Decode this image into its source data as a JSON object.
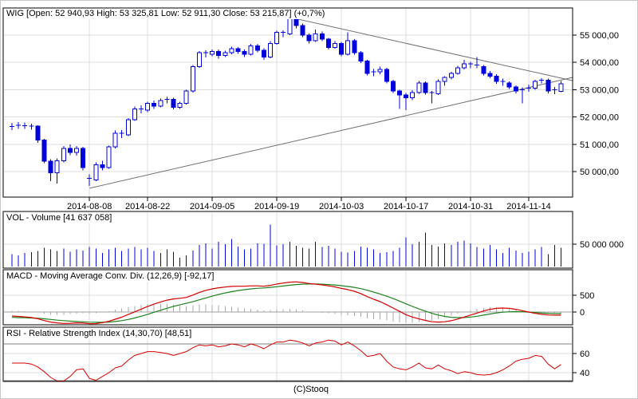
{
  "panels": {
    "price": {
      "header": "WIG [Open: 52 940,93  High: 53 325,81  Low: 52 911,30  Close: 53 215,87] (+0,7%)"
    },
    "volume": {
      "header": "VOL - Volume [41 637 058]"
    },
    "macd": {
      "header": "MACD - Moving Average Conv. Div. (12,26,9) [-92,17]"
    },
    "rsi": {
      "header": "RSI - Relative Strength Index (14,30,70) [48,51]"
    }
  },
  "footer": {
    "copyright": "(C)Stooq"
  },
  "colors": {
    "candle": "#0000dc",
    "volume": "#0000dc",
    "macd_line": "#d40000",
    "signal_line": "#1e821e",
    "histogram": "#a8a8a8",
    "rsi_line": "#d40000",
    "trendline": "#707070",
    "grid": "#dcdcdc",
    "zero_line": "#a0a0a0",
    "level_line": "#808080",
    "border": "#000000"
  },
  "chart_data": [
    {
      "type": "candlestick",
      "name": "WIG daily",
      "title": "WIG [Open: 52 940,93  High: 53 325,81  Low: 52 911,30  Close: 53 215,87] (+0,7%)",
      "grid": true,
      "ylim": [
        49060,
        55990
      ],
      "x_ticks": [
        {
          "index": 12,
          "label": "2014-08-08"
        },
        {
          "index": 21,
          "label": "2014-08-22"
        },
        {
          "index": 31,
          "label": "2014-09-05"
        },
        {
          "index": 41,
          "label": "2014-09-19"
        },
        {
          "index": 51,
          "label": "2014-10-03"
        },
        {
          "index": 61,
          "label": "2014-10-17"
        },
        {
          "index": 71,
          "label": "2014-10-31"
        },
        {
          "index": 80,
          "label": "2014-11-14"
        }
      ],
      "y_axis": [
        {
          "value": 55000,
          "label": "55 000,00"
        },
        {
          "value": 54000,
          "label": "54 000,00"
        },
        {
          "value": 53000,
          "label": "53 000,00"
        },
        {
          "value": 52000,
          "label": "52 000,00"
        },
        {
          "value": 51000,
          "label": "51 000,00"
        },
        {
          "value": 50000,
          "label": "50 000,00"
        }
      ],
      "trendlines": [
        {
          "name": "rising-support",
          "from": {
            "index": 12,
            "price": 49390
          },
          "to": {
            "index": 86.8,
            "price": 53450
          }
        },
        {
          "name": "falling-resistance",
          "from": {
            "index": 41,
            "price": 55760
          },
          "to": {
            "index": 86.8,
            "price": 53330
          }
        }
      ],
      "ohlc": [
        [
          51600,
          51780,
          51520,
          51650
        ],
        [
          51650,
          51820,
          51560,
          51700
        ],
        [
          51680,
          51800,
          51570,
          51680
        ],
        [
          51660,
          51760,
          51540,
          51660
        ],
        [
          51660,
          51700,
          51050,
          51150
        ],
        [
          51150,
          51200,
          50300,
          50380
        ],
        [
          50380,
          50450,
          49650,
          49950
        ],
        [
          49950,
          50480,
          49560,
          50400
        ],
        [
          50400,
          50930,
          50340,
          50850
        ],
        [
          50850,
          51000,
          50600,
          50700
        ],
        [
          50700,
          50940,
          50580,
          50850
        ],
        [
          50850,
          50900,
          50050,
          50150
        ],
        [
          49750,
          49900,
          49470,
          49700
        ],
        [
          49700,
          50330,
          49650,
          50250
        ],
        [
          50250,
          50400,
          50050,
          50150
        ],
        [
          50150,
          50950,
          50100,
          50900
        ],
        [
          50900,
          51500,
          50850,
          51400
        ],
        [
          51400,
          51520,
          51230,
          51350
        ],
        [
          51350,
          51960,
          51300,
          51900
        ],
        [
          51900,
          52380,
          51850,
          52300
        ],
        [
          52300,
          52420,
          52130,
          52250
        ],
        [
          52250,
          52560,
          52180,
          52500
        ],
        [
          52500,
          52600,
          52300,
          52400
        ],
        [
          52400,
          52680,
          52350,
          52600
        ],
        [
          52600,
          52740,
          52500,
          52650
        ],
        [
          52650,
          52700,
          52280,
          52350
        ],
        [
          52350,
          52560,
          52290,
          52500
        ],
        [
          52500,
          53000,
          52450,
          52950
        ],
        [
          52950,
          53900,
          52900,
          53850
        ],
        [
          53850,
          54420,
          53800,
          54350
        ],
        [
          54350,
          54440,
          54180,
          54300
        ],
        [
          54300,
          54480,
          54220,
          54400
        ],
        [
          54400,
          54470,
          54140,
          54250
        ],
        [
          54250,
          54430,
          54190,
          54350
        ],
        [
          54350,
          54580,
          54300,
          54500
        ],
        [
          54500,
          54560,
          54310,
          54400
        ],
        [
          54400,
          54480,
          54200,
          54300
        ],
        [
          54300,
          54680,
          54260,
          54600
        ],
        [
          54600,
          54680,
          54370,
          54450
        ],
        [
          54450,
          54520,
          54100,
          54200
        ],
        [
          54200,
          54780,
          54150,
          54700
        ],
        [
          54700,
          55160,
          54650,
          55100
        ],
        [
          55100,
          55180,
          54920,
          55050
        ],
        [
          55050,
          55750,
          55000,
          55650
        ],
        [
          55650,
          55700,
          55250,
          55350
        ],
        [
          55350,
          55420,
          54920,
          55000
        ],
        [
          55000,
          55060,
          54700,
          54800
        ],
        [
          54800,
          55200,
          54750,
          55050
        ],
        [
          55050,
          55130,
          54780,
          54850
        ],
        [
          54850,
          54900,
          54480,
          54550
        ],
        [
          54550,
          54780,
          54500,
          54700
        ],
        [
          54700,
          54750,
          54220,
          54300
        ],
        [
          54300,
          55100,
          54260,
          54800
        ],
        [
          54800,
          54860,
          54280,
          54350
        ],
        [
          54350,
          54420,
          53980,
          54050
        ],
        [
          54050,
          54100,
          53520,
          53600
        ],
        [
          53600,
          53760,
          53500,
          53650
        ],
        [
          53650,
          53840,
          53560,
          53750
        ],
        [
          53750,
          53800,
          53230,
          53300
        ],
        [
          53300,
          53360,
          52880,
          52950
        ],
        [
          52950,
          53000,
          52300,
          52800
        ],
        [
          52800,
          52880,
          52250,
          52700
        ],
        [
          52700,
          52980,
          52620,
          52900
        ],
        [
          52900,
          53320,
          52850,
          53250
        ],
        [
          53250,
          53300,
          52820,
          52900
        ],
        [
          52900,
          52960,
          52500,
          52850
        ],
        [
          52850,
          53370,
          52800,
          53300
        ],
        [
          53300,
          53500,
          53150,
          53450
        ],
        [
          53450,
          53660,
          53380,
          53600
        ],
        [
          53600,
          53870,
          53550,
          53800
        ],
        [
          53800,
          54100,
          53750,
          53950
        ],
        [
          53950,
          54020,
          53780,
          53900
        ],
        [
          53900,
          54200,
          53790,
          53850
        ],
        [
          53850,
          53900,
          53520,
          53600
        ],
        [
          53600,
          53680,
          53420,
          53500
        ],
        [
          53500,
          53560,
          53220,
          53300
        ],
        [
          53300,
          53400,
          53150,
          53250
        ],
        [
          53250,
          53310,
          53020,
          53100
        ],
        [
          53100,
          53160,
          52870,
          52950
        ],
        [
          52950,
          53080,
          52500,
          53000
        ],
        [
          53000,
          53180,
          52920,
          53050
        ],
        [
          53050,
          53360,
          53000,
          53300
        ],
        [
          53300,
          53420,
          53230,
          53350
        ],
        [
          53350,
          53400,
          52870,
          52950
        ],
        [
          52950,
          53100,
          52830,
          53000
        ],
        [
          52941,
          53326,
          52911,
          53216
        ]
      ]
    },
    {
      "type": "bar",
      "name": "VOL - Volume",
      "unit": "millions of shares",
      "current": "41 637 058",
      "ylim": [
        0,
        122
      ],
      "y_axis": [
        {
          "value": 50,
          "label": "50 000 000"
        }
      ],
      "values": [
        28,
        25,
        30,
        32,
        35,
        42,
        38,
        35,
        40,
        33,
        38,
        36,
        44,
        40,
        30,
        38,
        42,
        35,
        40,
        44,
        38,
        42,
        35,
        30,
        38,
        33,
        20,
        25,
        36,
        48,
        52,
        40,
        55,
        50,
        62,
        45,
        38,
        40,
        52,
        51,
        94,
        47,
        50,
        55,
        46,
        42,
        40,
        55,
        44,
        46,
        40,
        33,
        31,
        35,
        45,
        42,
        38,
        30,
        32,
        35,
        42,
        65,
        50,
        55,
        76,
        48,
        45,
        52,
        48,
        55,
        58,
        52,
        44,
        40,
        48,
        38,
        30,
        42,
        36,
        30,
        33,
        38,
        44,
        28,
        48,
        41.6
      ]
    },
    {
      "type": "line",
      "name": "MACD (12,26,9)",
      "current": "-92,17",
      "ylim": [
        -380,
        1262
      ],
      "y_axis": [
        {
          "value": 500,
          "label": "500"
        },
        {
          "value": 0,
          "label": "0"
        }
      ],
      "series": [
        {
          "name": "macd",
          "values": [
            -120,
            -130,
            -145,
            -165,
            -200,
            -255,
            -300,
            -325,
            -340,
            -335,
            -325,
            -330,
            -350,
            -345,
            -320,
            -275,
            -215,
            -155,
            -75,
            5,
            85,
            165,
            235,
            300,
            355,
            390,
            410,
            435,
            505,
            585,
            645,
            690,
            725,
            745,
            765,
            770,
            770,
            780,
            780,
            770,
            795,
            835,
            865,
            890,
            900,
            880,
            850,
            830,
            810,
            780,
            750,
            705,
            670,
            620,
            550,
            460,
            380,
            310,
            220,
            120,
            20,
            -80,
            -150,
            -205,
            -250,
            -290,
            -300,
            -290,
            -260,
            -210,
            -150,
            -90,
            -30,
            30,
            80,
            110,
            120,
            110,
            80,
            40,
            0,
            -40,
            -70,
            -88,
            -94,
            -92
          ]
        },
        {
          "name": "signal",
          "values": [
            -160,
            -166,
            -172,
            -178,
            -188,
            -202,
            -222,
            -242,
            -258,
            -272,
            -283,
            -292,
            -302,
            -308,
            -308,
            -300,
            -284,
            -258,
            -222,
            -178,
            -126,
            -68,
            -8,
            52,
            112,
            168,
            216,
            260,
            308,
            364,
            420,
            474,
            524,
            568,
            608,
            640,
            666,
            690,
            708,
            720,
            735,
            755,
            777,
            800,
            820,
            832,
            836,
            835,
            830,
            820,
            806,
            786,
            763,
            735,
            698,
            650,
            596,
            538,
            474,
            403,
            327,
            246,
            167,
            93,
            25,
            -38,
            -90,
            -130,
            -156,
            -167,
            -164,
            -149,
            -125,
            -94,
            -60,
            -28,
            -5,
            8,
            12,
            8,
            -2,
            -15,
            -28,
            -38,
            -44,
            -46
          ]
        },
        {
          "name": "histogram",
          "rule": "macd minus signal"
        }
      ]
    },
    {
      "type": "line",
      "name": "RSI (14)",
      "current": "48,51",
      "ylim": [
        30.8,
        87.5
      ],
      "levels": [
        70,
        30
      ],
      "y_axis": [
        {
          "value": 60,
          "label": "60"
        },
        {
          "value": 40,
          "label": "40"
        }
      ],
      "values": [
        50,
        50,
        50,
        49,
        46,
        41,
        35,
        31,
        30,
        36,
        43,
        44,
        34,
        32,
        36,
        40,
        45,
        47,
        53,
        58,
        60,
        62,
        62,
        61,
        60,
        58,
        60,
        62,
        66,
        69,
        68,
        69,
        67,
        68,
        70,
        69,
        67,
        70,
        68,
        65,
        69,
        72,
        72,
        74,
        73,
        71,
        68,
        71,
        72,
        74,
        73,
        69,
        72,
        68,
        63,
        57,
        58,
        60,
        52,
        46,
        44,
        43,
        46,
        50,
        45,
        44,
        48,
        44,
        42,
        39,
        41,
        40,
        38,
        37.5,
        38,
        40,
        43,
        47,
        52,
        54,
        55,
        58,
        57,
        49,
        44,
        48.5
      ]
    }
  ]
}
